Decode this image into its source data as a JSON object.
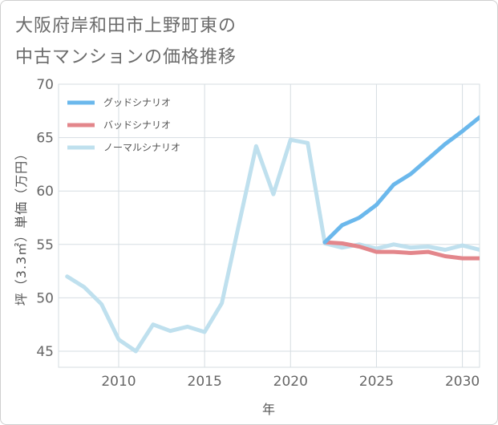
{
  "title": {
    "line1": "大阪府岸和田市上野町東の",
    "line2": "中古マンションの価格推移"
  },
  "chart_data": {
    "type": "line",
    "title": "大阪府岸和田市上野町東の中古マンションの価格推移",
    "xlabel": "年",
    "ylabel": "坪（3.3㎡）単価（万円）",
    "xlim": [
      2006.5,
      2031
    ],
    "ylim": [
      43.5,
      70
    ],
    "xticks": [
      2010,
      2015,
      2020,
      2025,
      2030
    ],
    "yticks": [
      45,
      50,
      55,
      60,
      65,
      70
    ],
    "xtick_labels": [
      "2010",
      "2015",
      "2020",
      "2025",
      "2030"
    ],
    "ytick_labels": [
      "45",
      "50",
      "55",
      "60",
      "65",
      "70"
    ],
    "grid": true,
    "legend_position": "top-left",
    "series": [
      {
        "name": "グッドシナリオ",
        "color": "#6bb8ec",
        "x": [
          2022,
          2023,
          2024,
          2025,
          2026,
          2027,
          2028,
          2029,
          2030,
          2031
        ],
        "values": [
          55.2,
          56.8,
          57.5,
          58.7,
          60.6,
          61.6,
          63.0,
          64.4,
          65.6,
          66.9
        ]
      },
      {
        "name": "バッドシナリオ",
        "color": "#e3868b",
        "x": [
          2022,
          2023,
          2024,
          2025,
          2026,
          2027,
          2028,
          2029,
          2030,
          2031
        ],
        "values": [
          55.2,
          55.1,
          54.8,
          54.3,
          54.3,
          54.2,
          54.3,
          53.9,
          53.7,
          53.7
        ]
      },
      {
        "name": "ノーマルシナリオ",
        "color": "#bfe0ee",
        "x": [
          2007,
          2008,
          2009,
          2010,
          2011,
          2012,
          2013,
          2014,
          2015,
          2016,
          2017,
          2018,
          2019,
          2020,
          2021,
          2022,
          2023,
          2024,
          2025,
          2026,
          2027,
          2028,
          2029,
          2030,
          2031
        ],
        "values": [
          52.0,
          51.0,
          49.4,
          46.1,
          45.0,
          47.5,
          46.9,
          47.3,
          46.8,
          49.5,
          56.9,
          64.2,
          59.7,
          64.8,
          64.5,
          55.1,
          54.7,
          55.0,
          54.6,
          55.0,
          54.7,
          54.8,
          54.5,
          54.9,
          54.5
        ]
      }
    ]
  }
}
